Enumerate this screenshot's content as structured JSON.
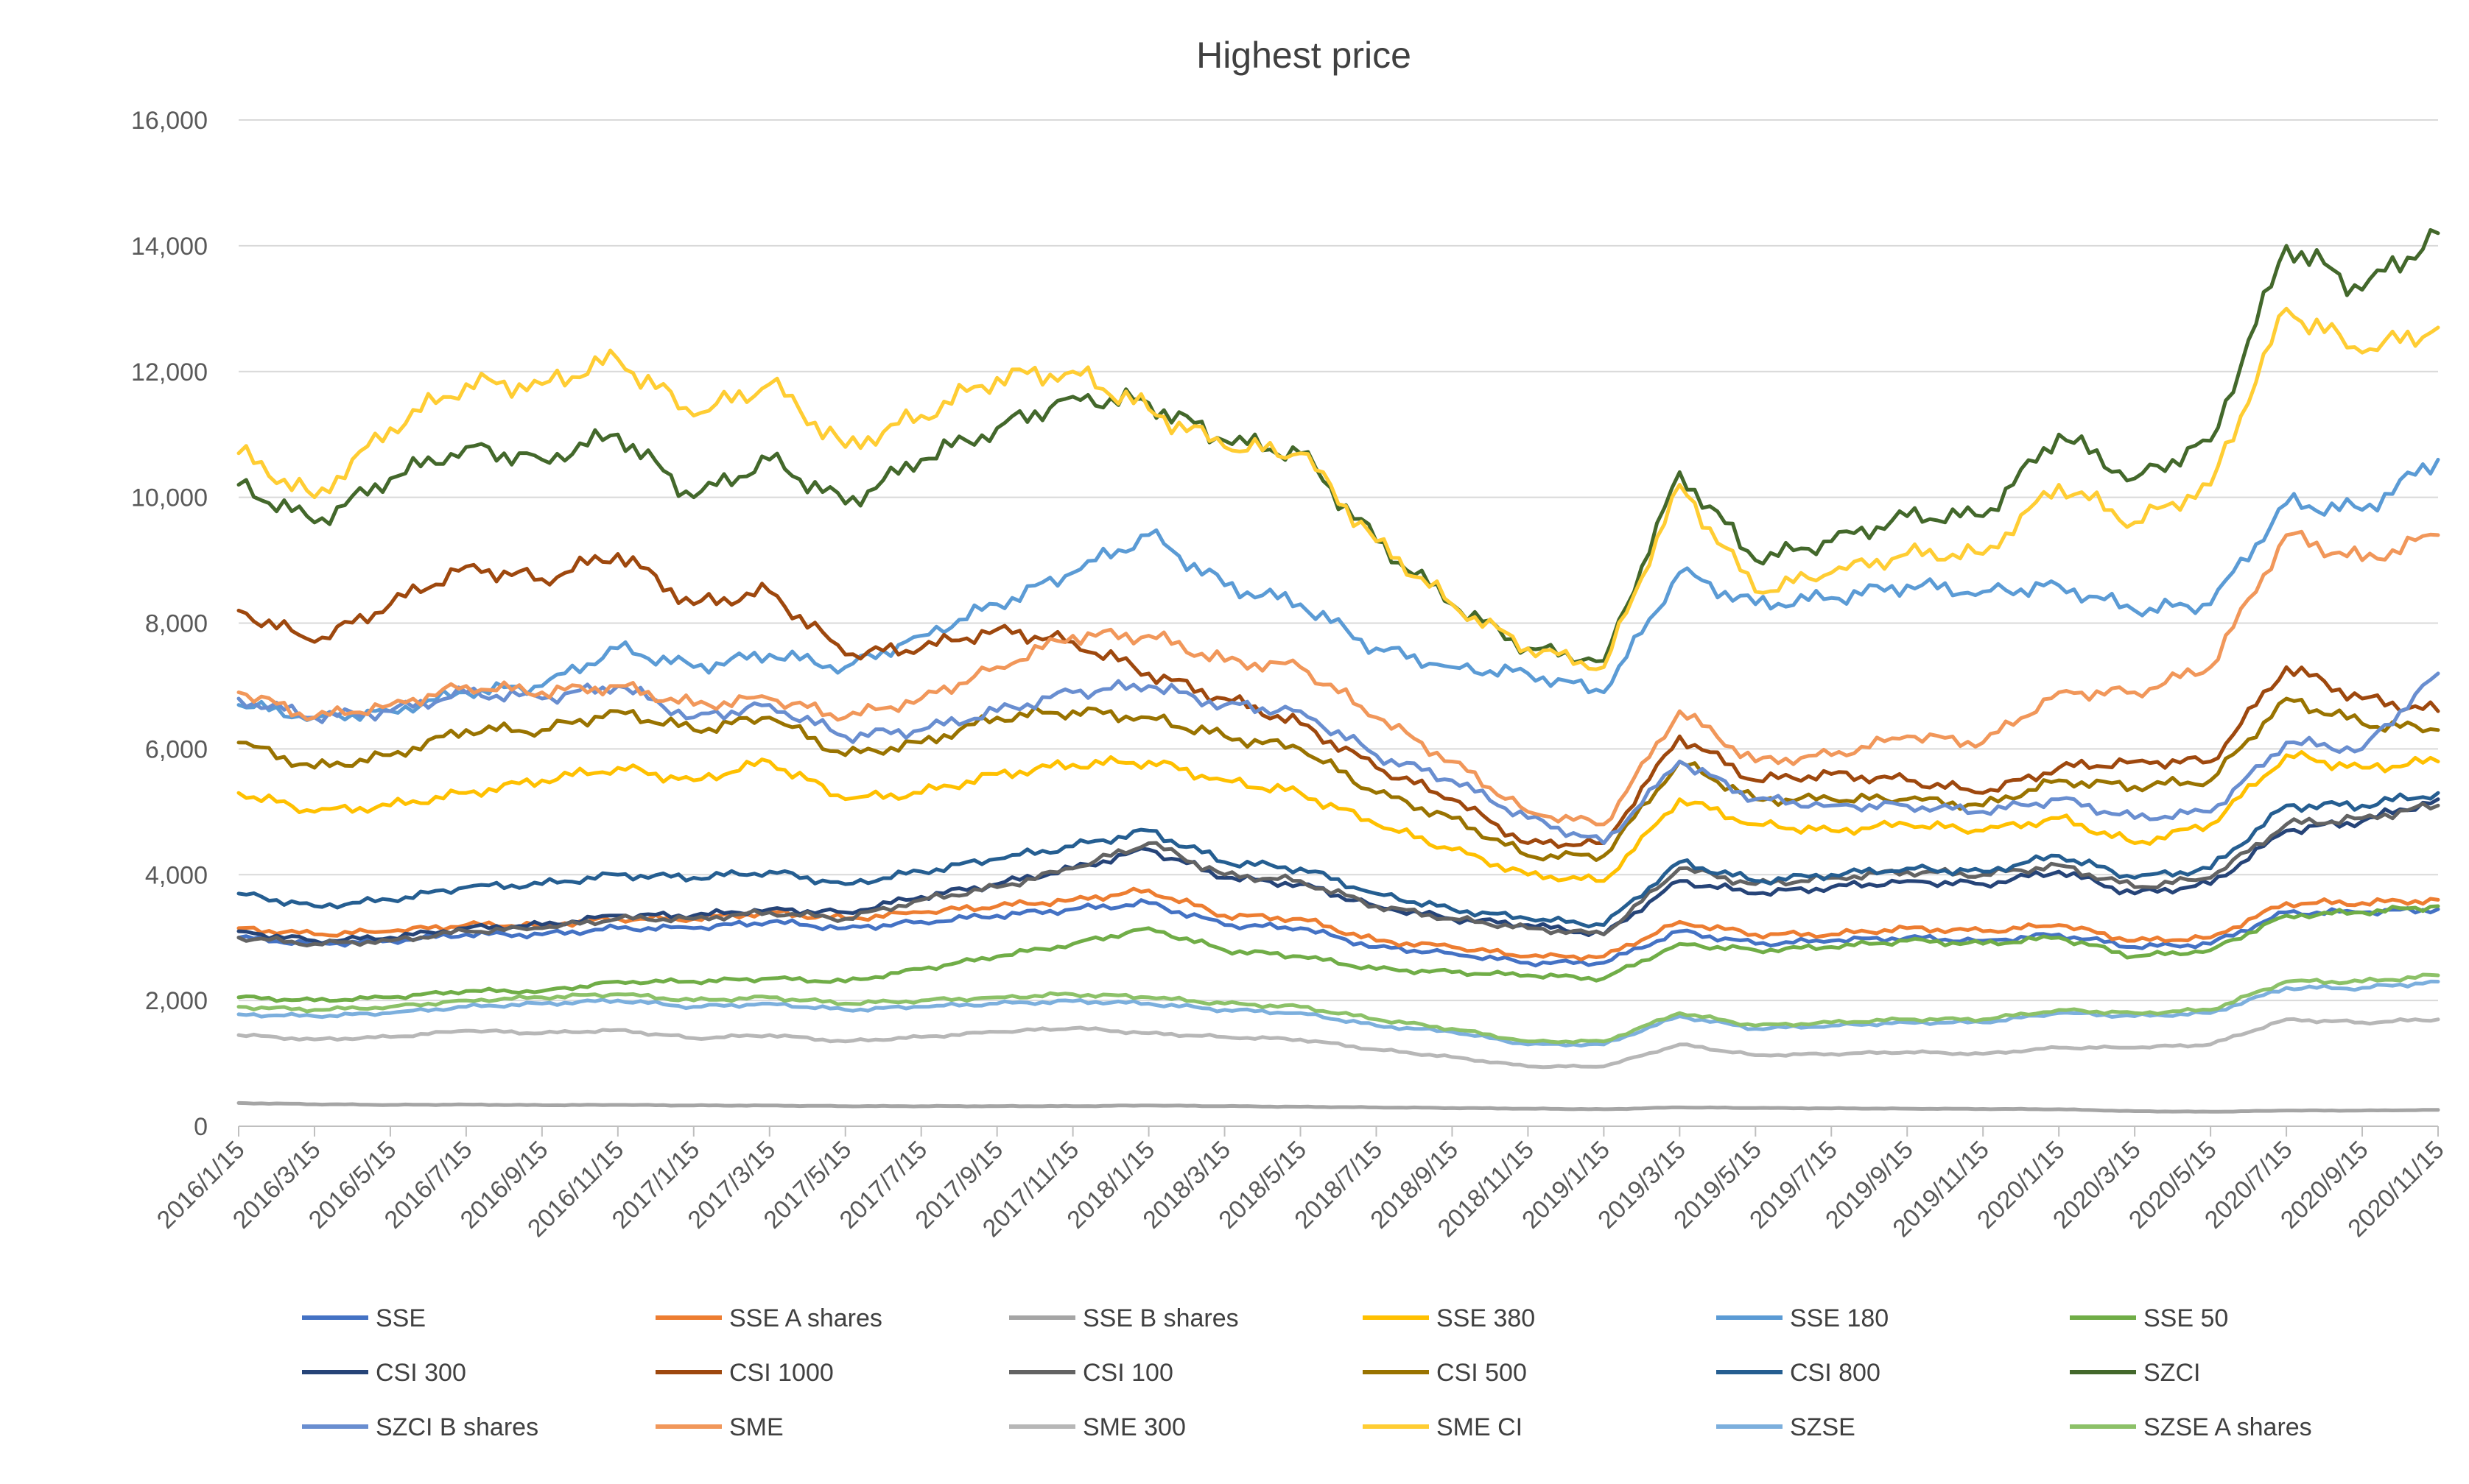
{
  "chart_data": {
    "type": "line",
    "title": "Highest price",
    "xlabel": "",
    "ylabel": "",
    "ylim": [
      0,
      16000
    ],
    "grid": true,
    "legend_position": "bottom",
    "yticks": [
      0,
      2000,
      4000,
      6000,
      8000,
      10000,
      12000,
      14000,
      16000
    ],
    "ytick_labels": [
      "0",
      "2,000",
      "4,000",
      "6,000",
      "8,000",
      "10,000",
      "12,000",
      "14,000",
      "16,000"
    ],
    "categories": [
      "2016/1/15",
      "2016/3/15",
      "2016/5/15",
      "2016/7/15",
      "2016/9/15",
      "2016/11/15",
      "2017/1/15",
      "2017/3/15",
      "2017/5/15",
      "2017/7/15",
      "2017/9/15",
      "2017/11/15",
      "2018/1/15",
      "2018/3/15",
      "2018/5/15",
      "2018/7/15",
      "2018/9/15",
      "2018/11/15",
      "2019/1/15",
      "2019/3/15",
      "2019/5/15",
      "2019/7/15",
      "2019/9/15",
      "2019/11/15",
      "2020/1/15",
      "2020/3/15",
      "2020/5/15",
      "2020/7/15",
      "2020/9/15",
      "2020/11/15"
    ],
    "series": [
      {
        "name": "SSE",
        "color": "#4472C4",
        "values": [
          3000,
          2900,
          2950,
          3050,
          3050,
          3150,
          3150,
          3250,
          3150,
          3250,
          3350,
          3450,
          3550,
          3200,
          3150,
          2850,
          2750,
          2600,
          2600,
          3100,
          2900,
          2950,
          3000,
          2950,
          3050,
          2850,
          2900,
          3400,
          3400,
          3450
        ]
      },
      {
        "name": "SSE A shares",
        "color": "#ED7D31",
        "values": [
          3150,
          3050,
          3100,
          3200,
          3200,
          3300,
          3300,
          3400,
          3300,
          3400,
          3500,
          3600,
          3750,
          3350,
          3300,
          2950,
          2850,
          2700,
          2700,
          3250,
          3050,
          3050,
          3150,
          3100,
          3200,
          2950,
          3000,
          3550,
          3550,
          3600
        ]
      },
      {
        "name": "SSE B shares",
        "color": "#A5A5A5",
        "values": [
          370,
          350,
          340,
          345,
          335,
          340,
          330,
          330,
          320,
          320,
          320,
          320,
          330,
          320,
          310,
          300,
          290,
          280,
          270,
          300,
          290,
          285,
          280,
          275,
          270,
          240,
          230,
          250,
          250,
          260
        ]
      },
      {
        "name": "SSE 380",
        "color": "#FFC000",
        "values": [
          5300,
          5000,
          5100,
          5300,
          5500,
          5700,
          5500,
          5800,
          5200,
          5300,
          5600,
          5750,
          5800,
          5500,
          5300,
          4800,
          4400,
          4000,
          3900,
          5200,
          4800,
          4700,
          4800,
          4700,
          4900,
          4500,
          4800,
          5900,
          5700,
          5800
        ]
      },
      {
        "name": "SSE 180",
        "color": "#5B9BD5",
        "values": [
          6700,
          6500,
          6600,
          6900,
          7000,
          7600,
          7300,
          7500,
          7300,
          7800,
          8300,
          8800,
          9400,
          8600,
          8300,
          7600,
          7300,
          7200,
          6900,
          8800,
          8300,
          8400,
          8600,
          8500,
          8600,
          8200,
          8300,
          9900,
          9800,
          10600
        ]
      },
      {
        "name": "SSE 50",
        "color": "#70AD47",
        "values": [
          2050,
          2000,
          2050,
          2150,
          2150,
          2300,
          2300,
          2350,
          2300,
          2500,
          2700,
          2900,
          3150,
          2800,
          2700,
          2500,
          2450,
          2400,
          2350,
          2900,
          2800,
          2850,
          2950,
          2900,
          3000,
          2700,
          2800,
          3350,
          3400,
          3500
        ]
      },
      {
        "name": "CSI 300",
        "color": "#264478",
        "values": [
          3100,
          2950,
          3000,
          3150,
          3200,
          3350,
          3350,
          3450,
          3400,
          3650,
          3850,
          4100,
          4400,
          3950,
          3850,
          3500,
          3300,
          3200,
          3050,
          3900,
          3700,
          3800,
          3900,
          3850,
          4050,
          3700,
          3850,
          4700,
          4850,
          5200
        ]
      },
      {
        "name": "CSI 1000",
        "color": "#9E480E",
        "values": [
          8200,
          7700,
          8300,
          8900,
          8700,
          9100,
          8300,
          8500,
          7500,
          7600,
          7900,
          7700,
          7200,
          6800,
          6400,
          5700,
          5200,
          4500,
          4500,
          6200,
          5500,
          5600,
          5500,
          5300,
          5700,
          5800,
          5800,
          7300,
          6800,
          6600
        ]
      },
      {
        "name": "CSI 100",
        "color": "#636363",
        "values": [
          3000,
          2900,
          2950,
          3100,
          3150,
          3300,
          3300,
          3400,
          3300,
          3600,
          3800,
          4100,
          4500,
          4000,
          3900,
          3500,
          3300,
          3150,
          3050,
          4100,
          3850,
          3950,
          4050,
          4000,
          4150,
          3800,
          3950,
          4800,
          4900,
          5100
        ]
      },
      {
        "name": "CSI 500",
        "color": "#997300",
        "values": [
          6100,
          5700,
          5900,
          6300,
          6300,
          6600,
          6300,
          6500,
          5900,
          6100,
          6500,
          6600,
          6500,
          6200,
          6000,
          5300,
          4900,
          4300,
          4300,
          5800,
          5200,
          5200,
          5200,
          5100,
          5500,
          5400,
          5500,
          6800,
          6400,
          6300
        ]
      },
      {
        "name": "CSI 800",
        "color": "#255E91",
        "values": [
          3700,
          3500,
          3600,
          3800,
          3850,
          4000,
          3950,
          4050,
          3850,
          4050,
          4250,
          4450,
          4700,
          4200,
          4100,
          3700,
          3450,
          3300,
          3200,
          4200,
          3900,
          4000,
          4100,
          4050,
          4300,
          3950,
          4100,
          5100,
          5100,
          5300
        ]
      },
      {
        "name": "SZCI",
        "color": "#43682B",
        "values": [
          10200,
          9600,
          10300,
          10800,
          10600,
          11000,
          10000,
          10600,
          9900,
          10600,
          11100,
          11600,
          11500,
          10900,
          10700,
          9300,
          8300,
          7600,
          7400,
          10400,
          9000,
          9300,
          9700,
          9700,
          11000,
          10300,
          10900,
          14000,
          13300,
          14200
        ]
      },
      {
        "name": "SZCI B shares",
        "color": "#698ED0",
        "values": [
          6800,
          6500,
          6600,
          6900,
          6800,
          7000,
          6500,
          6700,
          6200,
          6300,
          6600,
          6900,
          7000,
          6700,
          6600,
          5900,
          5500,
          4900,
          4500,
          5800,
          5200,
          5100,
          5100,
          5000,
          5200,
          4900,
          5000,
          6100,
          6000,
          7200
        ]
      },
      {
        "name": "SME",
        "color": "#F1975A",
        "values": [
          6900,
          6500,
          6700,
          7000,
          6900,
          7000,
          6700,
          6800,
          6500,
          6800,
          7300,
          7800,
          7800,
          7400,
          7300,
          6500,
          5800,
          5000,
          4800,
          6600,
          5800,
          5900,
          6200,
          6100,
          6900,
          6900,
          7300,
          9400,
          9000,
          9400
        ]
      },
      {
        "name": "SME 300",
        "color": "#B7B7B7",
        "values": [
          1450,
          1380,
          1420,
          1520,
          1480,
          1530,
          1400,
          1450,
          1350,
          1420,
          1500,
          1560,
          1480,
          1420,
          1380,
          1220,
          1100,
          950,
          950,
          1300,
          1130,
          1150,
          1180,
          1150,
          1250,
          1250,
          1300,
          1700,
          1650,
          1700
        ]
      },
      {
        "name": "SME CI",
        "color": "#FFCD33",
        "values": [
          10700,
          10000,
          11100,
          11800,
          11800,
          12200,
          11300,
          11800,
          10800,
          11300,
          11900,
          12000,
          11400,
          10800,
          10700,
          9300,
          8300,
          7600,
          7300,
          10200,
          8500,
          8800,
          9100,
          9100,
          10200,
          9600,
          10200,
          13000,
          12300,
          12700
        ]
      },
      {
        "name": "SZSE",
        "color": "#7CAFDD",
        "values": [
          1780,
          1750,
          1800,
          1900,
          1950,
          2000,
          1900,
          1950,
          1850,
          1900,
          1950,
          1990,
          1950,
          1850,
          1800,
          1600,
          1500,
          1300,
          1300,
          1750,
          1550,
          1600,
          1650,
          1650,
          1800,
          1750,
          1800,
          2200,
          2200,
          2300
        ]
      },
      {
        "name": "SZSE A shares",
        "color": "#8CC168",
        "values": [
          1900,
          1850,
          1900,
          2000,
          2050,
          2100,
          2000,
          2050,
          1950,
          2000,
          2050,
          2100,
          2050,
          1950,
          1900,
          1700,
          1550,
          1350,
          1350,
          1800,
          1600,
          1650,
          1700,
          1700,
          1850,
          1800,
          1850,
          2300,
          2300,
          2400
        ]
      }
    ]
  }
}
